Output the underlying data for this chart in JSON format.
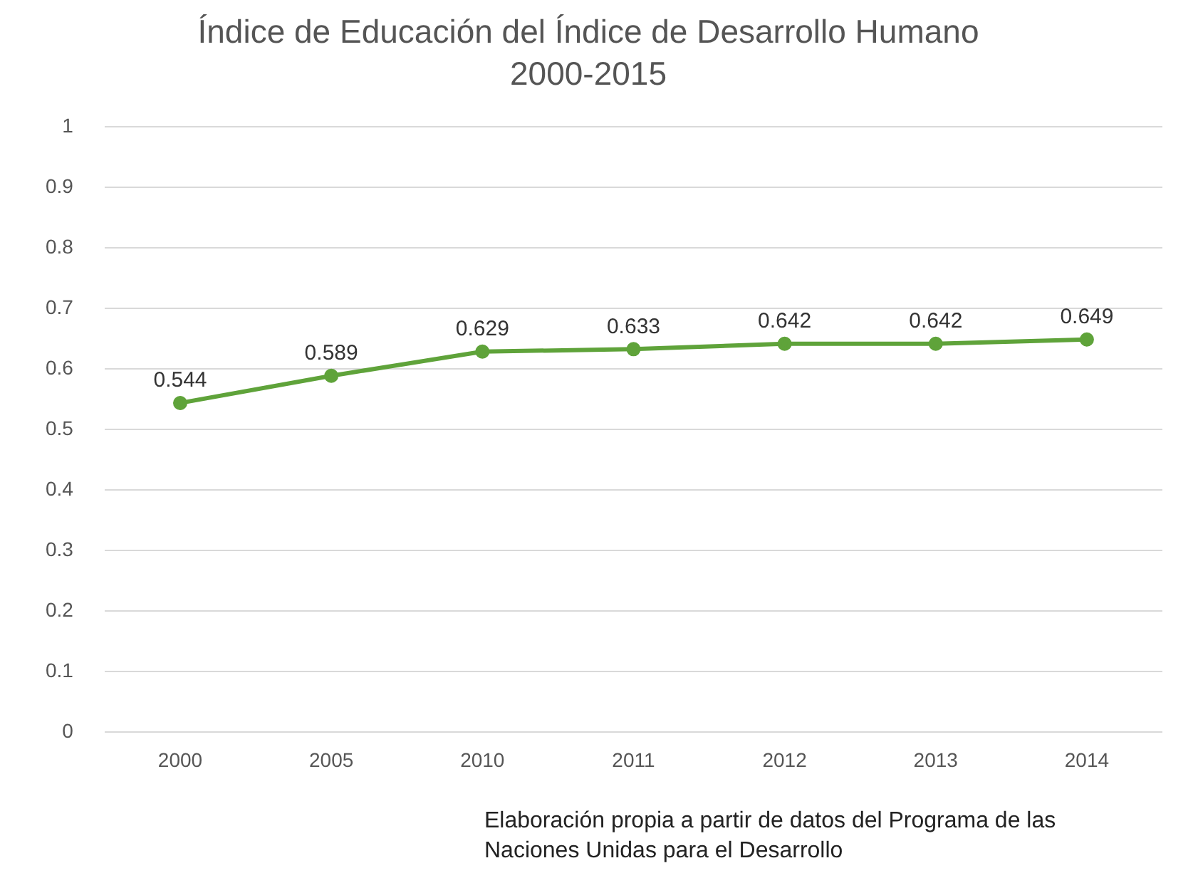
{
  "chart_data": {
    "type": "line",
    "title": "Índice de Educación del Índice de Desarrollo Humano",
    "subtitle": "2000-2015",
    "categories": [
      "2000",
      "2005",
      "2010",
      "2011",
      "2012",
      "2013",
      "2014"
    ],
    "series": [
      {
        "color": "#5fa33a",
        "values": [
          0.544,
          0.589,
          0.629,
          0.633,
          0.642,
          0.642,
          0.649
        ]
      }
    ],
    "ylim": [
      0,
      1
    ],
    "yticks": [
      0,
      0.1,
      0.2,
      0.3,
      0.4,
      0.5,
      0.6,
      0.7,
      0.8,
      0.9,
      1
    ],
    "grid": "y",
    "legend": false,
    "marker": "circle",
    "line_style": "solid",
    "data_labels": true,
    "annotations": [
      "Elaboración propia a partir de datos del Programa de las Naciones Unidas para el Desarrollo"
    ]
  }
}
